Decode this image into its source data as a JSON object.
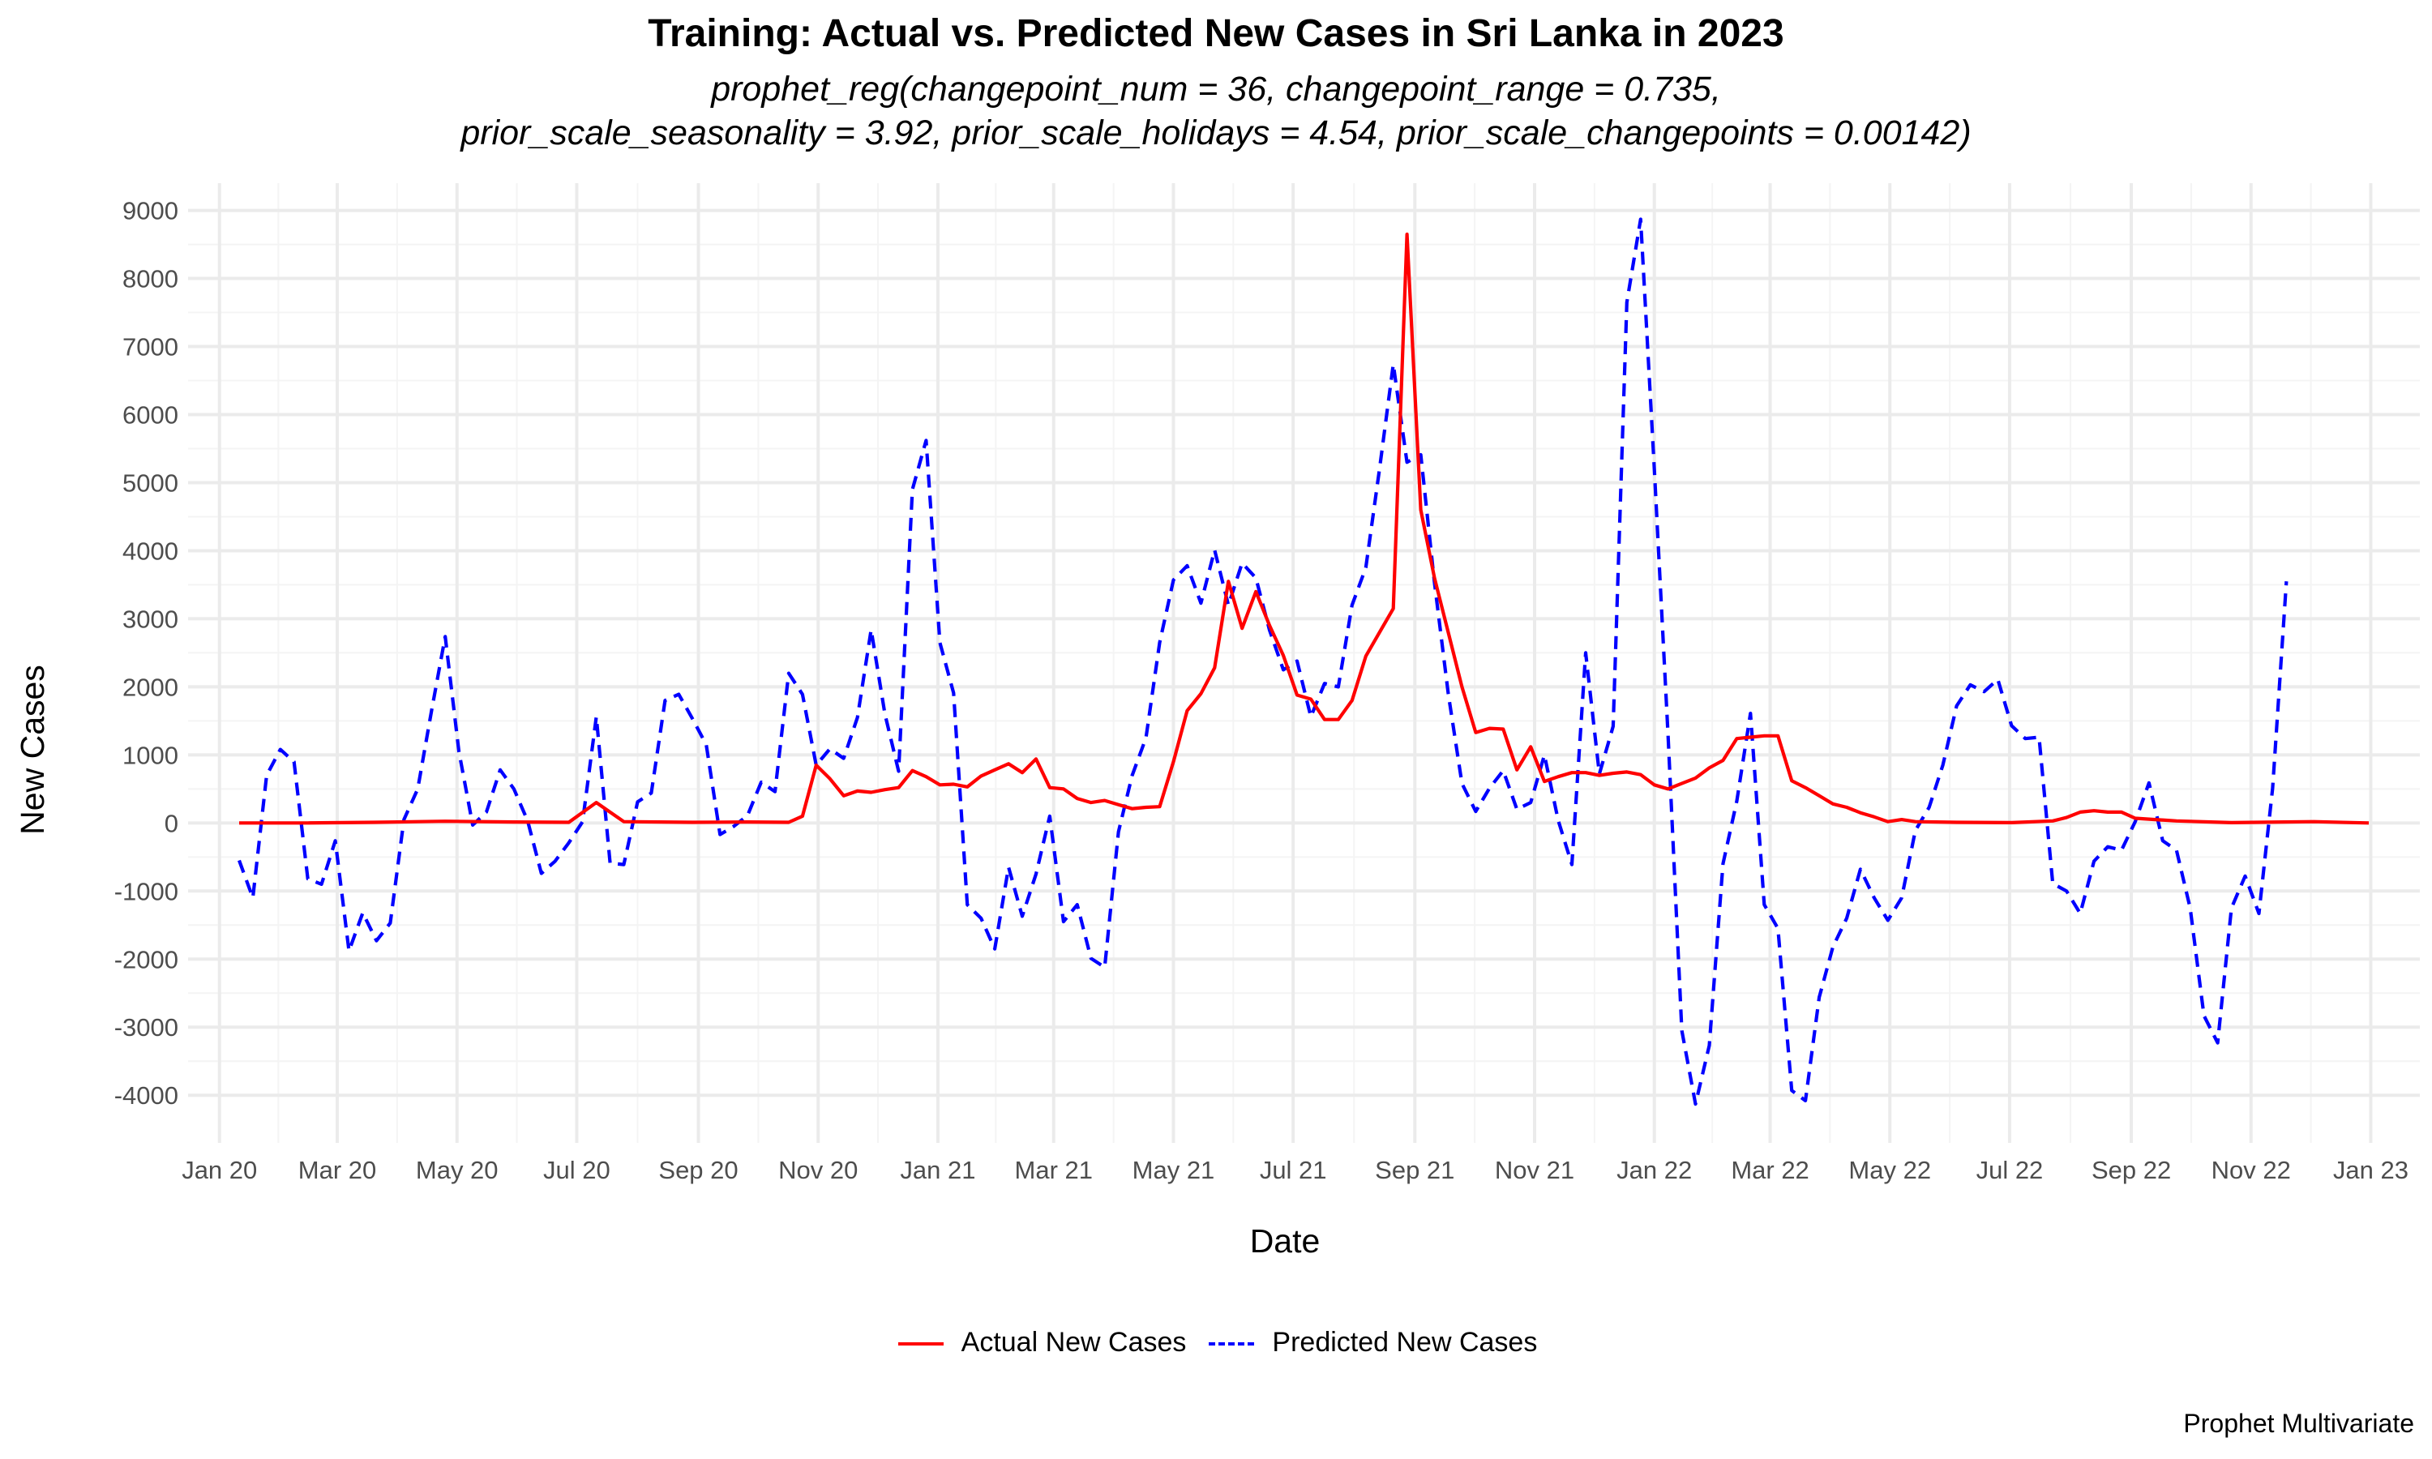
{
  "chart_data": {
    "type": "line",
    "title": "Training: Actual vs. Predicted New Cases in Sri Lanka in 2023",
    "subtitle_line1": "prophet_reg(changepoint_num = 36, changepoint_range = 0.735,",
    "subtitle_line2": "prior_scale_seasonality = 3.92, prior_scale_holidays = 4.54, prior_scale_changepoints = 0.00142)",
    "xlabel": "Date",
    "ylabel": "New Cases",
    "caption": "Prophet Multivariate",
    "ylim": [
      -4700,
      9400
    ],
    "yticks": [
      -4000,
      -3000,
      -2000,
      -1000,
      0,
      1000,
      2000,
      3000,
      4000,
      5000,
      6000,
      7000,
      8000,
      9000
    ],
    "xlim": [
      "2019-12-16",
      "2023-01-26"
    ],
    "xticks": [
      {
        "date": "2020-01-01",
        "label": "Jan 20"
      },
      {
        "date": "2020-03-01",
        "label": "Mar 20"
      },
      {
        "date": "2020-05-01",
        "label": "May 20"
      },
      {
        "date": "2020-07-01",
        "label": "Jul 20"
      },
      {
        "date": "2020-09-01",
        "label": "Sep 20"
      },
      {
        "date": "2020-11-01",
        "label": "Nov 20"
      },
      {
        "date": "2021-01-01",
        "label": "Jan 21"
      },
      {
        "date": "2021-03-01",
        "label": "Mar 21"
      },
      {
        "date": "2021-05-01",
        "label": "May 21"
      },
      {
        "date": "2021-07-01",
        "label": "Jul 21"
      },
      {
        "date": "2021-09-01",
        "label": "Sep 21"
      },
      {
        "date": "2021-11-01",
        "label": "Nov 21"
      },
      {
        "date": "2022-01-01",
        "label": "Jan 22"
      },
      {
        "date": "2022-03-01",
        "label": "Mar 22"
      },
      {
        "date": "2022-05-01",
        "label": "May 22"
      },
      {
        "date": "2022-07-01",
        "label": "Jul 22"
      },
      {
        "date": "2022-09-01",
        "label": "Sep 22"
      },
      {
        "date": "2022-11-01",
        "label": "Nov 22"
      },
      {
        "date": "2023-01-01",
        "label": "Jan 23"
      }
    ],
    "grid": true,
    "legend_position": "bottom",
    "series": [
      {
        "name": "Actual New Cases",
        "color": "#ff0000",
        "dash": "solid",
        "points": [
          [
            "2020-01-11",
            0
          ],
          [
            "2020-02-15",
            0
          ],
          [
            "2020-03-20",
            10
          ],
          [
            "2020-04-25",
            25
          ],
          [
            "2020-05-30",
            15
          ],
          [
            "2020-06-27",
            10
          ],
          [
            "2020-07-11",
            300
          ],
          [
            "2020-07-25",
            20
          ],
          [
            "2020-08-29",
            10
          ],
          [
            "2020-09-26",
            15
          ],
          [
            "2020-10-17",
            10
          ],
          [
            "2020-10-24",
            100
          ],
          [
            "2020-10-31",
            850
          ],
          [
            "2020-11-07",
            650
          ],
          [
            "2020-11-14",
            400
          ],
          [
            "2020-11-21",
            470
          ],
          [
            "2020-11-28",
            450
          ],
          [
            "2020-12-05",
            490
          ],
          [
            "2020-12-12",
            520
          ],
          [
            "2020-12-19",
            770
          ],
          [
            "2020-12-26",
            680
          ],
          [
            "2021-01-02",
            560
          ],
          [
            "2021-01-09",
            570
          ],
          [
            "2021-01-16",
            530
          ],
          [
            "2021-01-23",
            690
          ],
          [
            "2021-01-30",
            780
          ],
          [
            "2021-02-06",
            870
          ],
          [
            "2021-02-13",
            740
          ],
          [
            "2021-02-20",
            940
          ],
          [
            "2021-02-27",
            520
          ],
          [
            "2021-03-06",
            500
          ],
          [
            "2021-03-13",
            360
          ],
          [
            "2021-03-20",
            300
          ],
          [
            "2021-03-27",
            330
          ],
          [
            "2021-04-03",
            270
          ],
          [
            "2021-04-10",
            210
          ],
          [
            "2021-04-17",
            230
          ],
          [
            "2021-04-24",
            240
          ],
          [
            "2021-05-01",
            900
          ],
          [
            "2021-05-08",
            1650
          ],
          [
            "2021-05-15",
            1900
          ],
          [
            "2021-05-22",
            2280
          ],
          [
            "2021-05-29",
            3550
          ],
          [
            "2021-06-05",
            2860
          ],
          [
            "2021-06-12",
            3400
          ],
          [
            "2021-06-19",
            2900
          ],
          [
            "2021-06-26",
            2460
          ],
          [
            "2021-07-03",
            1880
          ],
          [
            "2021-07-10",
            1820
          ],
          [
            "2021-07-17",
            1520
          ],
          [
            "2021-07-24",
            1520
          ],
          [
            "2021-07-31",
            1800
          ],
          [
            "2021-08-07",
            2450
          ],
          [
            "2021-08-14",
            2800
          ],
          [
            "2021-08-21",
            3150
          ],
          [
            "2021-08-28",
            8650
          ],
          [
            "2021-09-04",
            4600
          ],
          [
            "2021-09-11",
            3600
          ],
          [
            "2021-09-18",
            2800
          ],
          [
            "2021-09-25",
            2000
          ],
          [
            "2021-10-02",
            1330
          ],
          [
            "2021-10-09",
            1390
          ],
          [
            "2021-10-16",
            1380
          ],
          [
            "2021-10-23",
            780
          ],
          [
            "2021-10-30",
            1120
          ],
          [
            "2021-11-06",
            610
          ],
          [
            "2021-11-13",
            680
          ],
          [
            "2021-11-20",
            740
          ],
          [
            "2021-11-27",
            740
          ],
          [
            "2021-12-04",
            700
          ],
          [
            "2021-12-11",
            730
          ],
          [
            "2021-12-18",
            750
          ],
          [
            "2021-12-25",
            710
          ],
          [
            "2022-01-01",
            560
          ],
          [
            "2022-01-08",
            500
          ],
          [
            "2022-01-15",
            580
          ],
          [
            "2022-01-22",
            660
          ],
          [
            "2022-01-29",
            810
          ],
          [
            "2022-02-05",
            920
          ],
          [
            "2022-02-12",
            1240
          ],
          [
            "2022-02-19",
            1260
          ],
          [
            "2022-02-26",
            1280
          ],
          [
            "2022-03-05",
            1280
          ],
          [
            "2022-03-12",
            620
          ],
          [
            "2022-03-19",
            520
          ],
          [
            "2022-03-26",
            400
          ],
          [
            "2022-04-02",
            280
          ],
          [
            "2022-04-09",
            230
          ],
          [
            "2022-04-16",
            150
          ],
          [
            "2022-04-23",
            90
          ],
          [
            "2022-04-30",
            20
          ],
          [
            "2022-05-07",
            50
          ],
          [
            "2022-05-14",
            20
          ],
          [
            "2022-06-04",
            10
          ],
          [
            "2022-07-02",
            5
          ],
          [
            "2022-07-23",
            30
          ],
          [
            "2022-07-30",
            80
          ],
          [
            "2022-08-06",
            160
          ],
          [
            "2022-08-13",
            180
          ],
          [
            "2022-08-20",
            160
          ],
          [
            "2022-08-27",
            160
          ],
          [
            "2022-09-03",
            70
          ],
          [
            "2022-09-24",
            30
          ],
          [
            "2022-10-22",
            5
          ],
          [
            "2022-12-03",
            20
          ],
          [
            "2022-12-31",
            0
          ]
        ]
      },
      {
        "name": "Predicted New Cases",
        "color": "#0000ff",
        "dash": "dashed",
        "points": [
          [
            "2020-01-11",
            -550
          ],
          [
            "2020-01-18",
            -1100
          ],
          [
            "2020-01-25",
            700
          ],
          [
            "2020-02-01",
            1080
          ],
          [
            "2020-02-08",
            900
          ],
          [
            "2020-02-15",
            -820
          ],
          [
            "2020-02-22",
            -900
          ],
          [
            "2020-02-29",
            -260
          ],
          [
            "2020-03-07",
            -1880
          ],
          [
            "2020-03-14",
            -1320
          ],
          [
            "2020-03-21",
            -1730
          ],
          [
            "2020-03-28",
            -1470
          ],
          [
            "2020-04-04",
            50
          ],
          [
            "2020-04-11",
            500
          ],
          [
            "2020-04-18",
            1640
          ],
          [
            "2020-04-25",
            2740
          ],
          [
            "2020-05-02",
            1050
          ],
          [
            "2020-05-09",
            -30
          ],
          [
            "2020-05-16",
            160
          ],
          [
            "2020-05-23",
            780
          ],
          [
            "2020-05-30",
            500
          ],
          [
            "2020-06-06",
            30
          ],
          [
            "2020-06-13",
            -740
          ],
          [
            "2020-06-20",
            -560
          ],
          [
            "2020-06-27",
            -290
          ],
          [
            "2020-07-04",
            20
          ],
          [
            "2020-07-11",
            1560
          ],
          [
            "2020-07-18",
            -590
          ],
          [
            "2020-07-25",
            -610
          ],
          [
            "2020-08-01",
            310
          ],
          [
            "2020-08-08",
            440
          ],
          [
            "2020-08-15",
            1800
          ],
          [
            "2020-08-22",
            1890
          ],
          [
            "2020-08-29",
            1530
          ],
          [
            "2020-09-05",
            1150
          ],
          [
            "2020-09-12",
            -170
          ],
          [
            "2020-09-19",
            -50
          ],
          [
            "2020-09-26",
            110
          ],
          [
            "2020-10-03",
            600
          ],
          [
            "2020-10-10",
            460
          ],
          [
            "2020-10-17",
            2200
          ],
          [
            "2020-10-24",
            1890
          ],
          [
            "2020-10-31",
            850
          ],
          [
            "2020-11-07",
            1090
          ],
          [
            "2020-11-14",
            950
          ],
          [
            "2020-11-21",
            1550
          ],
          [
            "2020-11-28",
            2840
          ],
          [
            "2020-12-05",
            1600
          ],
          [
            "2020-12-12",
            760
          ],
          [
            "2020-12-19",
            4900
          ],
          [
            "2020-12-26",
            5620
          ],
          [
            "2021-01-02",
            2650
          ],
          [
            "2021-01-09",
            1910
          ],
          [
            "2021-01-16",
            -1200
          ],
          [
            "2021-01-23",
            -1400
          ],
          [
            "2021-01-30",
            -1850
          ],
          [
            "2021-02-06",
            -650
          ],
          [
            "2021-02-13",
            -1370
          ],
          [
            "2021-02-20",
            -750
          ],
          [
            "2021-02-27",
            100
          ],
          [
            "2021-03-06",
            -1450
          ],
          [
            "2021-03-13",
            -1200
          ],
          [
            "2021-03-20",
            -1990
          ],
          [
            "2021-03-27",
            -2120
          ],
          [
            "2021-04-03",
            -130
          ],
          [
            "2021-04-10",
            700
          ],
          [
            "2021-04-17",
            1250
          ],
          [
            "2021-04-24",
            2650
          ],
          [
            "2021-05-01",
            3570
          ],
          [
            "2021-05-08",
            3780
          ],
          [
            "2021-05-15",
            3230
          ],
          [
            "2021-05-22",
            4010
          ],
          [
            "2021-05-29",
            3200
          ],
          [
            "2021-06-05",
            3820
          ],
          [
            "2021-06-12",
            3600
          ],
          [
            "2021-06-19",
            2830
          ],
          [
            "2021-06-26",
            2250
          ],
          [
            "2021-07-03",
            2380
          ],
          [
            "2021-07-10",
            1560
          ],
          [
            "2021-07-17",
            2050
          ],
          [
            "2021-07-24",
            2000
          ],
          [
            "2021-07-31",
            3200
          ],
          [
            "2021-08-07",
            3750
          ],
          [
            "2021-08-14",
            5200
          ],
          [
            "2021-08-21",
            6740
          ],
          [
            "2021-08-28",
            5300
          ],
          [
            "2021-09-04",
            5410
          ],
          [
            "2021-09-11",
            3530
          ],
          [
            "2021-09-18",
            1900
          ],
          [
            "2021-09-25",
            580
          ],
          [
            "2021-10-02",
            170
          ],
          [
            "2021-10-09",
            510
          ],
          [
            "2021-10-16",
            770
          ],
          [
            "2021-10-23",
            200
          ],
          [
            "2021-10-30",
            300
          ],
          [
            "2021-11-06",
            1000
          ],
          [
            "2021-11-13",
            40
          ],
          [
            "2021-11-20",
            -610
          ],
          [
            "2021-11-27",
            2500
          ],
          [
            "2021-12-04",
            720
          ],
          [
            "2021-12-11",
            1420
          ],
          [
            "2021-12-18",
            7650
          ],
          [
            "2021-12-25",
            8870
          ],
          [
            "2022-01-01",
            5200
          ],
          [
            "2022-01-08",
            1300
          ],
          [
            "2022-01-15",
            -3050
          ],
          [
            "2022-01-22",
            -4130
          ],
          [
            "2022-01-29",
            -3270
          ],
          [
            "2022-02-05",
            -600
          ],
          [
            "2022-02-12",
            320
          ],
          [
            "2022-02-19",
            1610
          ],
          [
            "2022-02-26",
            -1200
          ],
          [
            "2022-03-05",
            -1550
          ],
          [
            "2022-03-12",
            -3930
          ],
          [
            "2022-03-19",
            -4080
          ],
          [
            "2022-03-26",
            -2560
          ],
          [
            "2022-04-02",
            -1820
          ],
          [
            "2022-04-09",
            -1400
          ],
          [
            "2022-04-16",
            -680
          ],
          [
            "2022-04-23",
            -1100
          ],
          [
            "2022-04-30",
            -1430
          ],
          [
            "2022-05-07",
            -1100
          ],
          [
            "2022-05-14",
            -110
          ],
          [
            "2022-05-21",
            230
          ],
          [
            "2022-05-28",
            850
          ],
          [
            "2022-06-04",
            1720
          ],
          [
            "2022-06-11",
            2030
          ],
          [
            "2022-06-18",
            1930
          ],
          [
            "2022-06-25",
            2110
          ],
          [
            "2022-07-02",
            1430
          ],
          [
            "2022-07-09",
            1240
          ],
          [
            "2022-07-16",
            1260
          ],
          [
            "2022-07-23",
            -890
          ],
          [
            "2022-07-30",
            -1000
          ],
          [
            "2022-08-06",
            -1330
          ],
          [
            "2022-08-13",
            -560
          ],
          [
            "2022-08-20",
            -350
          ],
          [
            "2022-08-27",
            -400
          ],
          [
            "2022-09-03",
            20
          ],
          [
            "2022-09-10",
            590
          ],
          [
            "2022-09-17",
            -260
          ],
          [
            "2022-09-24",
            -400
          ],
          [
            "2022-10-01",
            -1250
          ],
          [
            "2022-10-08",
            -2830
          ],
          [
            "2022-10-15",
            -3230
          ],
          [
            "2022-10-22",
            -1250
          ],
          [
            "2022-10-29",
            -780
          ],
          [
            "2022-11-05",
            -1330
          ],
          [
            "2022-11-12",
            510
          ],
          [
            "2022-11-19",
            3550
          ]
        ]
      }
    ]
  }
}
